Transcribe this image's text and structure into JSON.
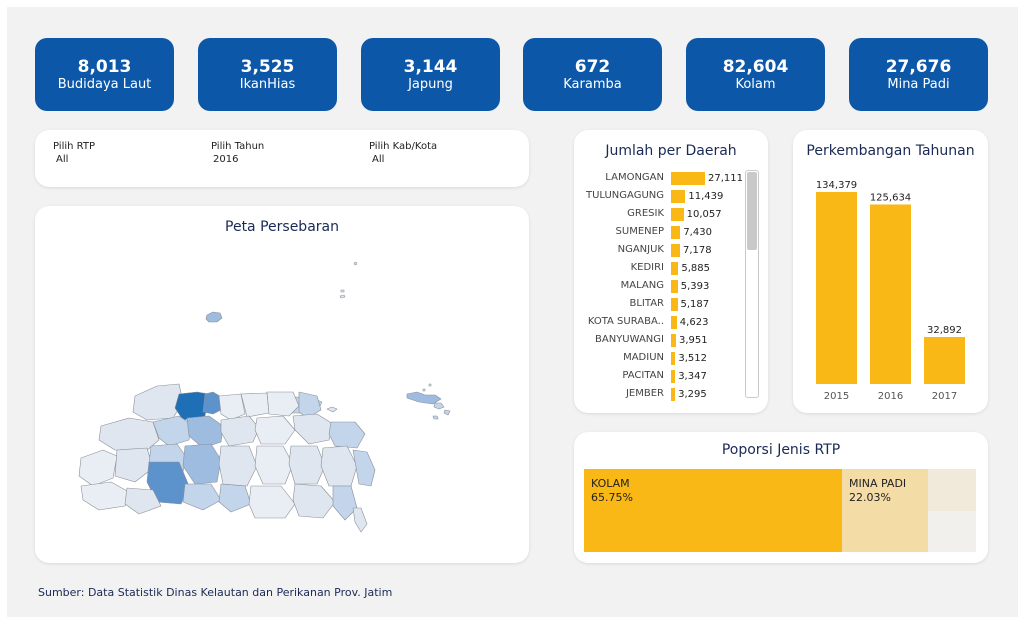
{
  "kpis": [
    {
      "value": "8,013",
      "label": "Budidaya Laut"
    },
    {
      "value": "3,525",
      "label": "IkanHias"
    },
    {
      "value": "3,144",
      "label": "Japung"
    },
    {
      "value": "672",
      "label": "Karamba"
    },
    {
      "value": "82,604",
      "label": "Kolam"
    },
    {
      "value": "27,676",
      "label": "Mina Padi"
    }
  ],
  "filters": {
    "rtp": {
      "label": "Pilih RTP",
      "value": "All"
    },
    "tahun": {
      "label": "Pilih Tahun",
      "value": "2016"
    },
    "kab": {
      "label": "Pilih Kab/Kota",
      "value": "All"
    }
  },
  "map": {
    "title": "Peta Persebaran"
  },
  "region": {
    "title": "Jumlah per Daerah",
    "rows": [
      {
        "name": "LAMONGAN",
        "value": 27111,
        "label": "27,111"
      },
      {
        "name": "TULUNGAGUNG",
        "value": 11439,
        "label": "11,439"
      },
      {
        "name": "GRESIK",
        "value": 10057,
        "label": "10,057"
      },
      {
        "name": "SUMENEP",
        "value": 7430,
        "label": "7,430"
      },
      {
        "name": "NGANJUK",
        "value": 7178,
        "label": "7,178"
      },
      {
        "name": "KEDIRI",
        "value": 5885,
        "label": "5,885"
      },
      {
        "name": "MALANG",
        "value": 5393,
        "label": "5,393"
      },
      {
        "name": "BLITAR",
        "value": 5187,
        "label": "5,187"
      },
      {
        "name": "KOTA SURABA..",
        "value": 4623,
        "label": "4,623"
      },
      {
        "name": "BANYUWANGI",
        "value": 3951,
        "label": "3,951"
      },
      {
        "name": "MADIUN",
        "value": 3512,
        "label": "3,512"
      },
      {
        "name": "PACITAN",
        "value": 3347,
        "label": "3,347"
      },
      {
        "name": "JEMBER",
        "value": 3295,
        "label": "3,295"
      }
    ]
  },
  "chart_data": {
    "type": "bar",
    "title": "Perkembangan Tahunan",
    "categories": [
      "2015",
      "2016",
      "2017"
    ],
    "values": [
      134379,
      125634,
      32892
    ],
    "value_labels": [
      "134,379",
      "125,634",
      "32,892"
    ],
    "color": "#f9b815",
    "grid": false
  },
  "treemap": {
    "title": "Poporsi Jenis RTP",
    "items": [
      {
        "name": "KOLAM",
        "pct": "65.75%",
        "color": "#f9b815"
      },
      {
        "name": "MINA PADI",
        "pct": "22.03%",
        "color": "#f4dca6"
      }
    ]
  },
  "source": "Sumber: Data Statistik Dinas Kelautan dan Perikanan Prov. Jatim"
}
